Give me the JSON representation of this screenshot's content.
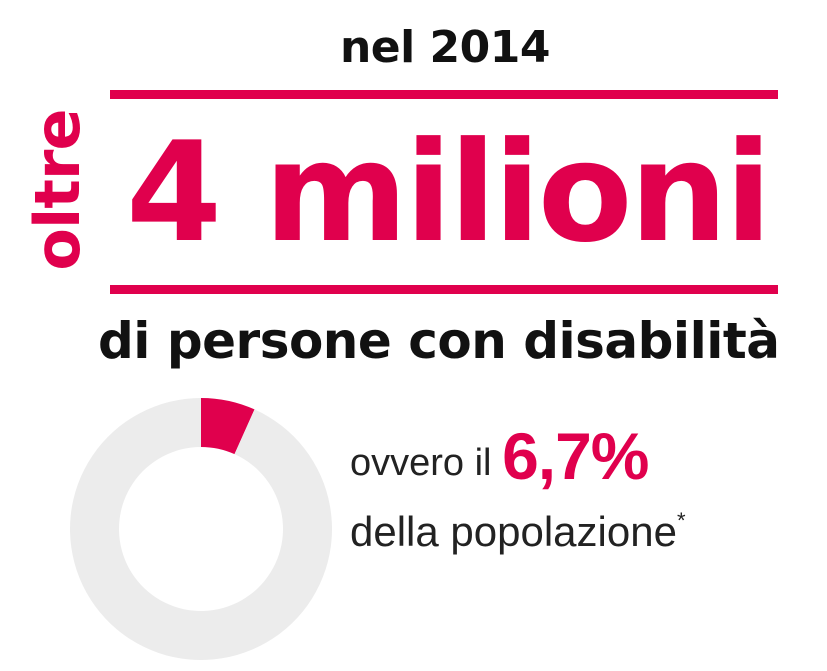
{
  "headline": {
    "year_text": "nel 2014",
    "prefix_vertical": "oltre",
    "big_number": "4 milioni",
    "subtitle": "di persone con disabilità"
  },
  "stat": {
    "lead": "ovvero il",
    "percent_label": "6,7%",
    "tail": "della popolazione",
    "footnote_mark": "*"
  },
  "colors": {
    "accent": "#e0004d",
    "ring_background": "#ececec",
    "text": "#111111"
  },
  "chart_data": {
    "type": "pie",
    "style": "donut",
    "categories": [
      "",
      ""
    ],
    "values": [
      6.7,
      93.3
    ],
    "colors": [
      "#e0004d",
      "#ececec"
    ],
    "unit": "%"
  }
}
